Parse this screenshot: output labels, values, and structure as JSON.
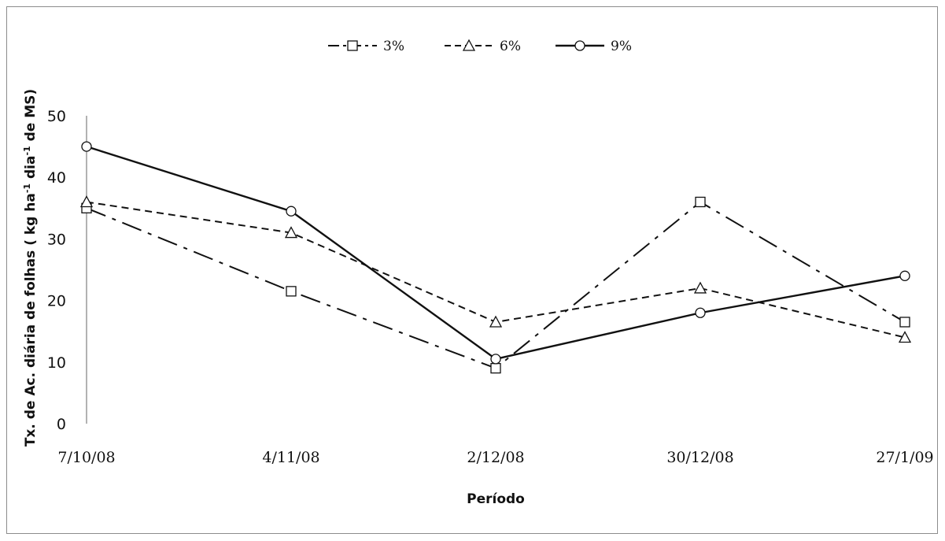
{
  "chart_data": {
    "type": "line",
    "title": "",
    "xlabel": "Período",
    "ylabel": "Tx. de Ac. diária de folhas ( kg ha-1 dia-1 de MS)",
    "ylabel_parts": [
      "Tx.  de Ac. diária  de  folhas ( kg ha",
      "-1",
      " dia",
      "-1",
      " de MS)"
    ],
    "categories": [
      "7/10/08",
      "4/11/08",
      "2/12/08",
      "30/12/08",
      "27/1/09"
    ],
    "ylim": [
      0,
      50
    ],
    "yticks": [
      "0",
      "10",
      "20",
      "30",
      "40",
      "50"
    ],
    "grid": false,
    "legend_position": "top",
    "series": [
      {
        "name": "3%",
        "values": [
          35,
          21.5,
          9,
          36,
          16.5
        ],
        "line": "dashdot",
        "marker": "square"
      },
      {
        "name": "6%",
        "values": [
          36,
          31,
          16.5,
          22,
          14
        ],
        "line": "dashed",
        "marker": "triangle"
      },
      {
        "name": "9%",
        "values": [
          45,
          34.5,
          10.5,
          18,
          24
        ],
        "line": "solid",
        "marker": "circle"
      }
    ]
  }
}
